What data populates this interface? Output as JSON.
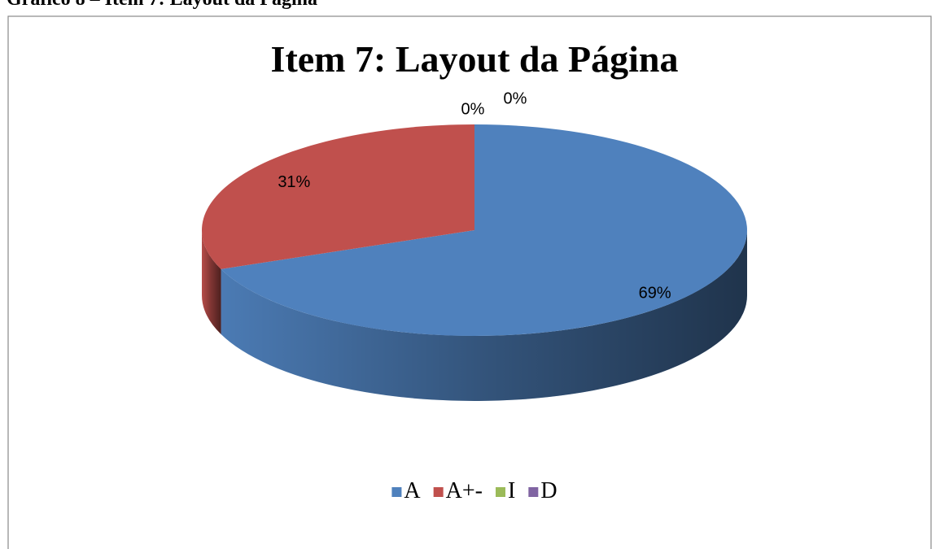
{
  "caption": "Gráfico 8 – Item 7: Layout da Página",
  "chart_data": {
    "type": "pie",
    "title": "Item 7: Layout da Página",
    "categories": [
      "A",
      "A+-",
      "I",
      "D"
    ],
    "values": [
      69,
      31,
      0,
      0
    ],
    "value_labels": [
      "69%",
      "31%",
      "0%",
      "0%"
    ],
    "colors": [
      "#4f81bd",
      "#c0504d",
      "#9bbb59",
      "#8064a2"
    ],
    "legend": "bottom"
  }
}
